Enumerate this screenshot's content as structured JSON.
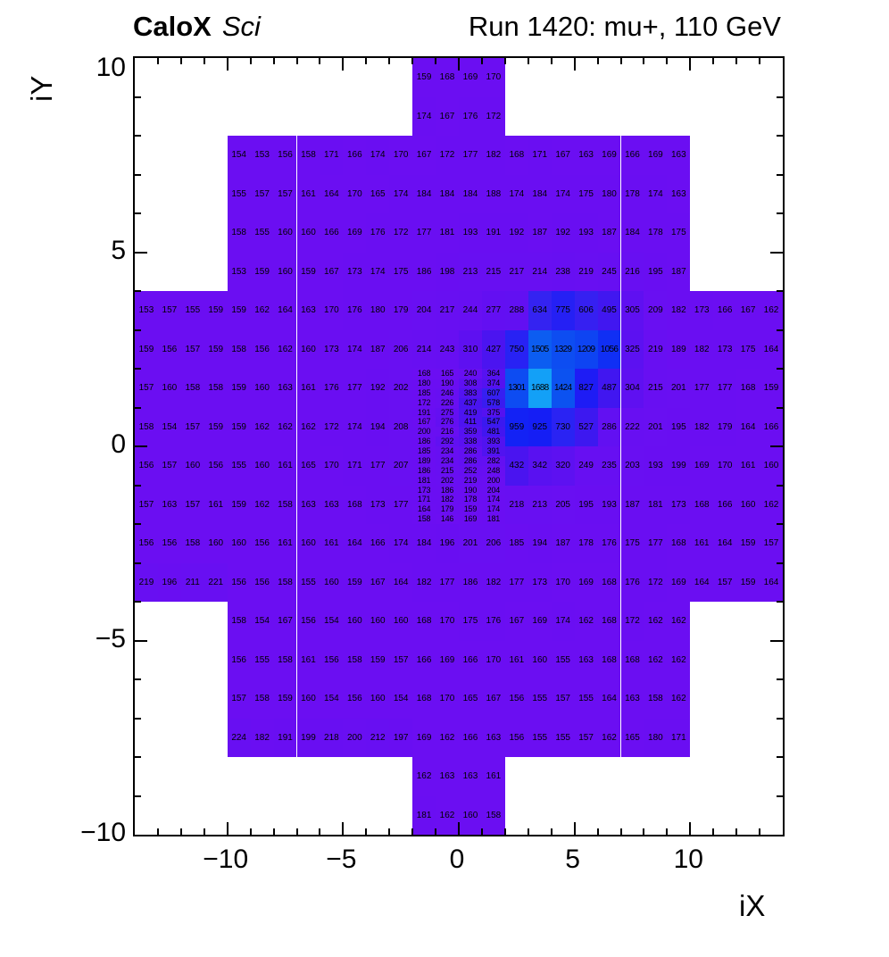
{
  "header": {
    "brand": "CaloX",
    "brand_style": "Sci",
    "run_title": "Run 1420: mu+, 110 GeV"
  },
  "chart_data": {
    "type": "heatmap",
    "title": "CaloX Sci  —  Run 1420: mu+, 110 GeV",
    "xlabel": "iX",
    "ylabel": "iY",
    "xlim": [
      -14,
      14
    ],
    "ylim": [
      -10,
      10
    ],
    "grid": false,
    "legend": "none",
    "x_ticks": [
      {
        "pos": -10,
        "label": "−10"
      },
      {
        "pos": -5,
        "label": "−5"
      },
      {
        "pos": 0,
        "label": "0"
      },
      {
        "pos": 5,
        "label": "5"
      },
      {
        "pos": 10,
        "label": "10"
      }
    ],
    "y_ticks": [
      {
        "pos": 10,
        "label": "10"
      },
      {
        "pos": 5,
        "label": "5"
      },
      {
        "pos": 0,
        "label": "0"
      },
      {
        "pos": -5,
        "label": "−5"
      },
      {
        "pos": -10,
        "label": "−10"
      }
    ],
    "palette_stops": [
      {
        "v": 140,
        "c": "#6C0EF2"
      },
      {
        "v": 260,
        "c": "#660FF2"
      },
      {
        "v": 330,
        "c": "#5B11F1"
      },
      {
        "v": 400,
        "c": "#5013F0"
      },
      {
        "v": 460,
        "c": "#4415F0"
      },
      {
        "v": 560,
        "c": "#3A1AF0"
      },
      {
        "v": 660,
        "c": "#3226F2"
      },
      {
        "v": 780,
        "c": "#2420F4"
      },
      {
        "v": 870,
        "c": "#1818F5"
      },
      {
        "v": 980,
        "c": "#1224F5"
      },
      {
        "v": 1100,
        "c": "#0F35F3"
      },
      {
        "v": 1250,
        "c": "#0D49F2"
      },
      {
        "v": 1480,
        "c": "#0C55F0"
      },
      {
        "v": 1560,
        "c": "#0C70F3"
      },
      {
        "v": 1700,
        "c": "#14A4F7"
      }
    ],
    "rows": [
      {
        "iy": 9,
        "x0": -2,
        "v": [
          159,
          168,
          169,
          170
        ]
      },
      {
        "iy": 8,
        "x0": -2,
        "v": [
          174,
          167,
          176,
          172
        ]
      },
      {
        "iy": 7,
        "x0": -10,
        "v": [
          154,
          153,
          156,
          158,
          171,
          166,
          174,
          170,
          167,
          172,
          177,
          182,
          168,
          171,
          167,
          163,
          169,
          166,
          169,
          163
        ]
      },
      {
        "iy": 6,
        "x0": -10,
        "v": [
          155,
          157,
          157,
          161,
          164,
          170,
          165,
          174,
          184,
          184,
          184,
          188,
          174,
          184,
          174,
          175,
          180,
          178,
          174,
          163
        ]
      },
      {
        "iy": 5,
        "x0": -10,
        "v": [
          158,
          155,
          160,
          160,
          166,
          169,
          176,
          172,
          177,
          181,
          193,
          191,
          192,
          187,
          192,
          193,
          187,
          184,
          178,
          175
        ]
      },
      {
        "iy": 4,
        "x0": -10,
        "v": [
          153,
          159,
          160,
          159,
          167,
          173,
          174,
          175,
          186,
          198,
          213,
          215,
          217,
          214,
          238,
          219,
          245,
          216,
          195,
          187
        ]
      },
      {
        "iy": 3,
        "x0": -14,
        "v": [
          153,
          157,
          155,
          159,
          159,
          162,
          164,
          163,
          170,
          176,
          180,
          179,
          204,
          217,
          244,
          277,
          288,
          634,
          775,
          606,
          495,
          305,
          209,
          182,
          173,
          166,
          167,
          162
        ]
      },
      {
        "iy": 2,
        "x0": -14,
        "v": [
          159,
          156,
          157,
          159,
          158,
          156,
          162,
          160,
          173,
          174,
          187,
          206,
          214,
          243,
          310,
          427,
          750,
          1505,
          1329,
          1209,
          1056,
          325,
          219,
          189,
          182,
          173,
          175,
          164
        ]
      },
      {
        "iy": 1,
        "x0": -14,
        "v": [
          157,
          160,
          158,
          158,
          159,
          160,
          163,
          161,
          176,
          177,
          192,
          202
        ]
      },
      {
        "iy": 1,
        "x0": 2,
        "v": [
          1301,
          1688,
          1424,
          827,
          487,
          304,
          215,
          201,
          177,
          177,
          168,
          159
        ]
      },
      {
        "iy": 0,
        "x0": -14,
        "v": [
          158,
          154,
          157,
          159,
          159,
          162,
          162,
          162,
          172,
          174,
          194,
          208
        ]
      },
      {
        "iy": 0,
        "x0": 2,
        "v": [
          959,
          925,
          730,
          527,
          286,
          222,
          201,
          195,
          182,
          179,
          164,
          166
        ]
      },
      {
        "iy": -1,
        "x0": -14,
        "v": [
          156,
          157,
          160,
          156,
          155,
          160,
          161,
          165,
          170,
          171,
          177,
          207
        ]
      },
      {
        "iy": -1,
        "x0": 2,
        "v": [
          432,
          342,
          320,
          249,
          235,
          203,
          193,
          199,
          169,
          170,
          161,
          160
        ]
      },
      {
        "iy": -2,
        "x0": -14,
        "v": [
          157,
          163,
          157,
          161,
          159,
          162,
          158,
          163,
          163,
          168,
          173,
          177
        ]
      },
      {
        "iy": -2,
        "x0": 2,
        "v": [
          218,
          213,
          205,
          195,
          193,
          187,
          181,
          173,
          168,
          166,
          160,
          162
        ]
      },
      {
        "iy": -3,
        "x0": -14,
        "v": [
          156,
          156,
          158,
          160,
          160,
          156,
          161,
          160,
          161,
          164,
          166,
          174,
          184,
          196,
          201,
          206,
          185,
          194,
          187,
          178,
          176,
          175,
          177,
          168,
          161,
          164,
          159,
          157
        ]
      },
      {
        "iy": -4,
        "x0": -14,
        "v": [
          219,
          196,
          211,
          221,
          156,
          156,
          158,
          155,
          160,
          159,
          167,
          164,
          182,
          177,
          186,
          182,
          177,
          173,
          170,
          169,
          168,
          176,
          172,
          169,
          164,
          157,
          159,
          164
        ]
      },
      {
        "iy": -5,
        "x0": -10,
        "v": [
          158,
          154,
          167,
          156,
          154,
          160,
          160,
          160,
          168,
          170,
          175,
          176,
          167,
          169,
          174,
          162,
          168,
          172,
          162,
          162
        ]
      },
      {
        "iy": -6,
        "x0": -10,
        "v": [
          156,
          155,
          158,
          161,
          156,
          158,
          159,
          157,
          166,
          169,
          166,
          170,
          161,
          160,
          155,
          163,
          168,
          168,
          162,
          162
        ]
      },
      {
        "iy": -7,
        "x0": -10,
        "v": [
          157,
          158,
          159,
          160,
          154,
          156,
          160,
          154,
          168,
          170,
          165,
          167,
          156,
          155,
          157,
          155,
          164,
          163,
          158,
          162
        ]
      },
      {
        "iy": -8,
        "x0": -10,
        "v": [
          224,
          182,
          191,
          199,
          218,
          200,
          212,
          197,
          169,
          162,
          166,
          163,
          156,
          155,
          155,
          157,
          162,
          165,
          180,
          171
        ]
      },
      {
        "iy": -9,
        "x0": -2,
        "v": [
          162,
          163,
          163,
          161
        ]
      },
      {
        "iy": -10,
        "x0": -2,
        "v": [
          181,
          162,
          160,
          158
        ]
      }
    ],
    "fine_block": {
      "x0": -2,
      "y_top": 2,
      "cell_w": 1,
      "cell_h": 0.25,
      "rows": [
        [
          168,
          165,
          240,
          364
        ],
        [
          180,
          190,
          308,
          374
        ],
        [
          185,
          246,
          383,
          607
        ],
        [
          172,
          226,
          437,
          578
        ],
        [
          191,
          275,
          419,
          375
        ],
        [
          167,
          276,
          411,
          547
        ],
        [
          200,
          216,
          359,
          481
        ],
        [
          186,
          292,
          338,
          393
        ],
        [
          185,
          234,
          286,
          391
        ],
        [
          189,
          234,
          286,
          282
        ],
        [
          186,
          215,
          252,
          248
        ],
        [
          181,
          202,
          219,
          200
        ],
        [
          173,
          186,
          190,
          204
        ],
        [
          171,
          182,
          178,
          174
        ],
        [
          164,
          179,
          159,
          174
        ],
        [
          158,
          146,
          169,
          181
        ]
      ]
    }
  }
}
